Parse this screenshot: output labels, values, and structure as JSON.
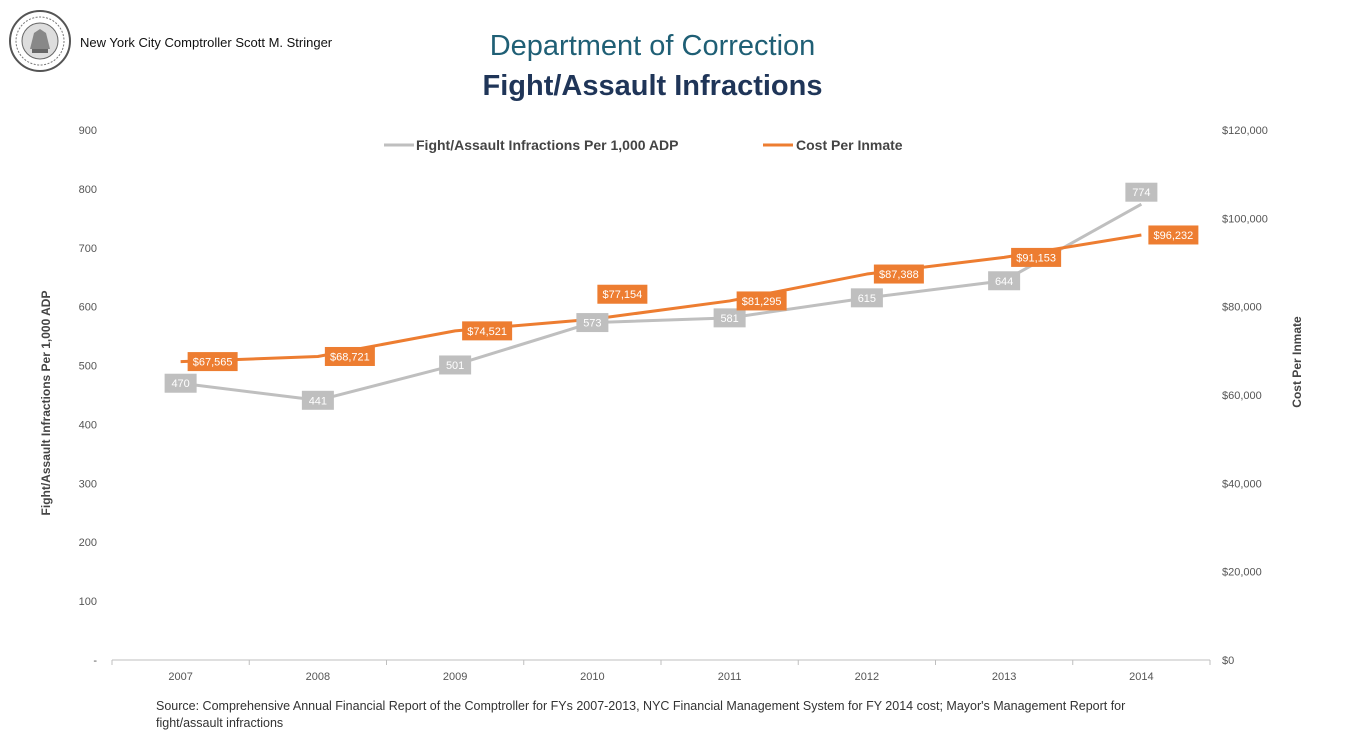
{
  "header": {
    "comptroller": "New York City Comptroller Scott M. Stringer",
    "title": "Department of Correction",
    "subtitle": "Fight/Assault Infractions",
    "seal_icon": "nyc-seal-icon"
  },
  "footer": {
    "source": "Source: Comprehensive Annual Financial Report of the Comptroller for FYs 2007-2013, NYC Financial Management System for FY 2014 cost; Mayor's Management Report for fight/assault infractions"
  },
  "chart_data": {
    "type": "line",
    "x": [
      "2007",
      "2008",
      "2009",
      "2010",
      "2011",
      "2012",
      "2013",
      "2014"
    ],
    "series": [
      {
        "name": "Fight/Assault Infractions Per 1,000 ADP",
        "axis": "left",
        "color": "#bfbfbf",
        "values": [
          470,
          441,
          501,
          573,
          581,
          615,
          644,
          774
        ],
        "labels": [
          "470",
          "441",
          "501",
          "573",
          "581",
          "615",
          "644",
          "774"
        ]
      },
      {
        "name": "Cost Per Inmate",
        "axis": "right",
        "color": "#ed7d31",
        "values": [
          67565,
          68721,
          74521,
          77154,
          81295,
          87388,
          91153,
          96232
        ],
        "labels": [
          "$67,565",
          "$68,721",
          "$74,521",
          "$77,154",
          "$81,295",
          "$87,388",
          "$91,153",
          "$96,232"
        ]
      }
    ],
    "ylabel_left": "Fight/Assault Infractions Per 1,000 ADP",
    "ylabel_right": "Cost Per Inmate",
    "ylim_left": [
      0,
      900
    ],
    "ylim_right": [
      0,
      120000
    ],
    "yticks_left": [
      "-",
      "100",
      "200",
      "300",
      "400",
      "500",
      "600",
      "700",
      "800",
      "900"
    ],
    "yticks_right": [
      "$0",
      "$20,000",
      "$40,000",
      "$60,000",
      "$80,000",
      "$100,000",
      "$120,000"
    ],
    "legend_position": "top-center",
    "grid": false
  }
}
